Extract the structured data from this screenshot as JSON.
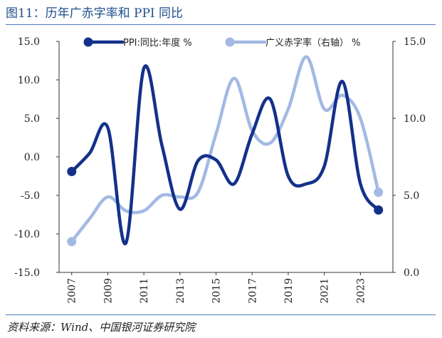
{
  "figure": {
    "title": "图11：历年广赤字率和 PPI 同比",
    "source": "资料来源：Wind、中国银河证券研究院"
  },
  "chart_data": {
    "type": "line",
    "x": [
      2007,
      2008,
      2009,
      2010,
      2011,
      2012,
      2013,
      2014,
      2015,
      2016,
      2017,
      2018,
      2019,
      2020,
      2021,
      2022,
      2023,
      2024
    ],
    "x_tick_labels": [
      "2007",
      "2009",
      "2011",
      "2013",
      "2015",
      "2017",
      "2019",
      "2021",
      "2023"
    ],
    "y_left": {
      "lim": [
        -15,
        15
      ],
      "ticks": [
        "15.0",
        "10.0",
        "5.0",
        "0.0",
        "-5.0",
        "-10.0",
        "-15.0"
      ],
      "tick_values": [
        15,
        10,
        5,
        0,
        -5,
        -10,
        -15
      ]
    },
    "y_right": {
      "lim": [
        0,
        15
      ],
      "ticks": [
        "15.0",
        "10.0",
        "5.0",
        "0.0"
      ],
      "tick_values": [
        15,
        10,
        5,
        0
      ]
    },
    "series": [
      {
        "name": "PPI:同比:年度 %",
        "axis": "left",
        "color": "#13318a",
        "values": [
          -1.9,
          0.5,
          3.8,
          -11.2,
          11.5,
          1.5,
          -6.8,
          -0.5,
          -0.4,
          -3.5,
          3.0,
          7.5,
          -2.5,
          -3.5,
          -1.2,
          9.8,
          -3.5,
          -6.9
        ]
      },
      {
        "name": "广义赤字率（右轴） %",
        "axis": "right",
        "color": "#a3b9e3",
        "values": [
          2.0,
          3.5,
          4.9,
          4.0,
          4.0,
          5.0,
          4.9,
          5.2,
          9.0,
          12.6,
          9.2,
          8.4,
          10.6,
          14.0,
          10.6,
          11.5,
          10.0,
          5.2
        ]
      }
    ]
  }
}
